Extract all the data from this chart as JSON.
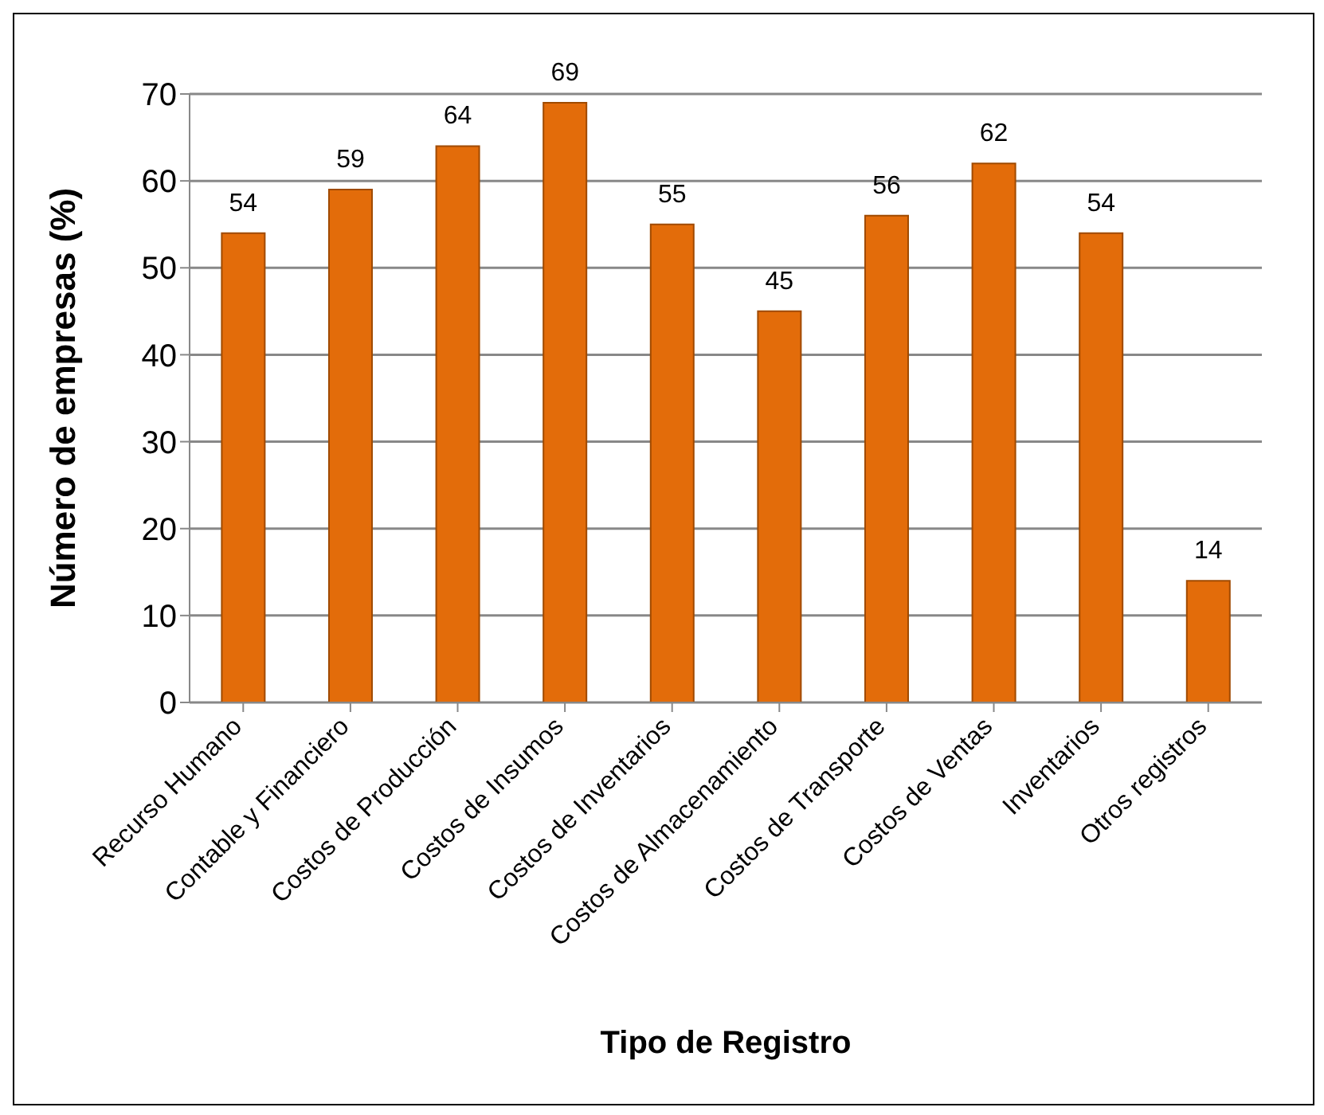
{
  "chart_data": {
    "type": "bar",
    "xlabel": "Tipo de Registro",
    "ylabel": "Número de empresas (%)",
    "categories": [
      "Recurso Humano",
      "Contable y Financiero",
      "Costos de Producción",
      "Costos de Insumos",
      "Costos de Inventarios",
      "Costos de Almacenamiento",
      "Costos de Transporte",
      "Costos de Ventas",
      "Inventarios",
      "Otros registros"
    ],
    "values": [
      54,
      59,
      64,
      69,
      55,
      45,
      56,
      62,
      54,
      14
    ],
    "color": "#e36c0a",
    "ylim": [
      0,
      70
    ],
    "yticks": [
      0,
      10,
      20,
      30,
      40,
      50,
      60,
      70
    ],
    "grid": "y",
    "data_labels": true
  }
}
